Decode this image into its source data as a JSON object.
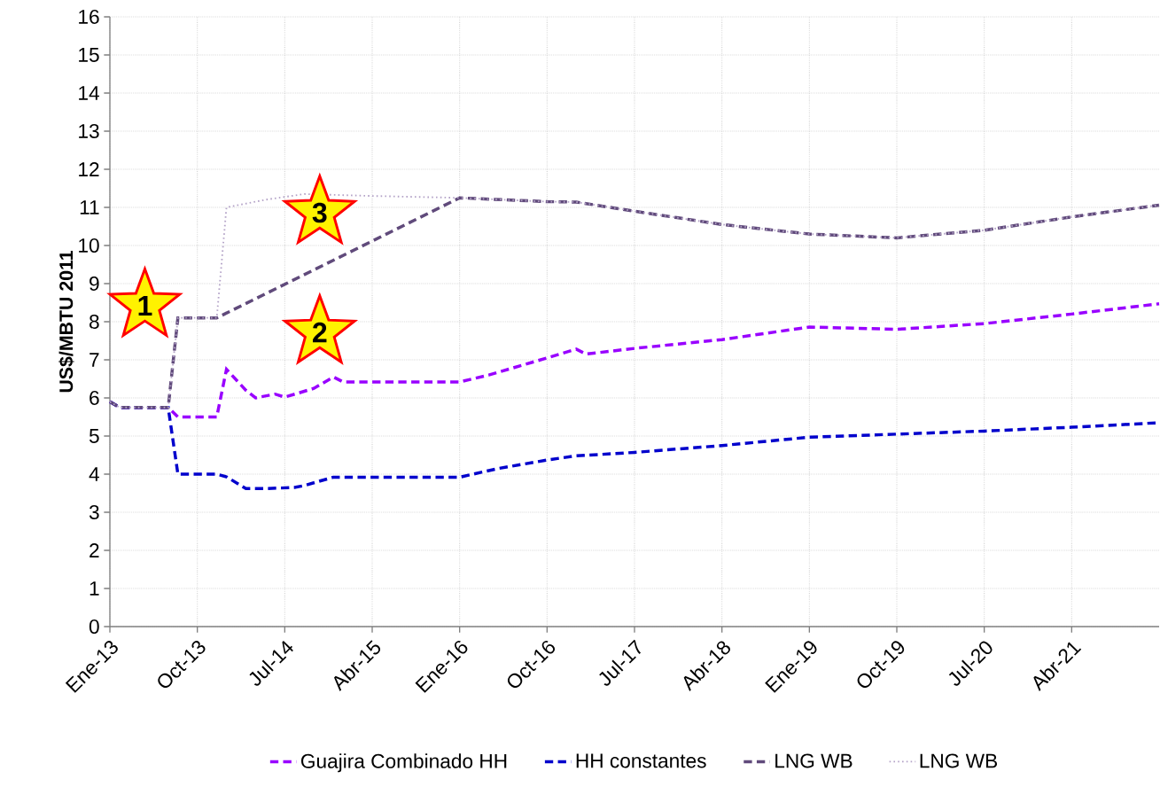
{
  "chart_data": {
    "type": "line",
    "ylabel": "US$/MBTU 2011",
    "xlim": [
      "2013-01",
      "2022-01"
    ],
    "ylim": [
      0,
      16
    ],
    "xticks": [
      {
        "value": "2013-01",
        "label": "Ene-13"
      },
      {
        "value": "2013-10",
        "label": "Oct-13"
      },
      {
        "value": "2014-07",
        "label": "Jul-14"
      },
      {
        "value": "2015-04",
        "label": "Abr-15"
      },
      {
        "value": "2016-01",
        "label": "Ene-16"
      },
      {
        "value": "2016-10",
        "label": "Oct-16"
      },
      {
        "value": "2017-07",
        "label": "Jul-17"
      },
      {
        "value": "2018-04",
        "label": "Abr-18"
      },
      {
        "value": "2019-01",
        "label": "Ene-19"
      },
      {
        "value": "2019-10",
        "label": "Oct-19"
      },
      {
        "value": "2020-07",
        "label": "Jul-20"
      },
      {
        "value": "2021-04",
        "label": "Abr-21"
      }
    ],
    "yticks": [
      0,
      1,
      2,
      3,
      4,
      5,
      6,
      7,
      8,
      9,
      10,
      11,
      12,
      13,
      14,
      15,
      16
    ],
    "grid": true,
    "legend": "bottom",
    "marker": "none",
    "annotations": [
      "1",
      "2",
      "3"
    ],
    "series": [
      {
        "name": "Guajira Combinado HH",
        "color": "#9900ff",
        "line_style": "dashed",
        "x": [
          "2013-01",
          "2013-02",
          "2013-07",
          "2013-08",
          "2013-12",
          "2014-01",
          "2014-03",
          "2014-04",
          "2014-06",
          "2014-07",
          "2014-10",
          "2014-12",
          "2015-01",
          "2016-01",
          "2016-04",
          "2016-10",
          "2017-01",
          "2017-02",
          "2017-07",
          "2018-04",
          "2019-01",
          "2019-10",
          "2020-07",
          "2021-04",
          "2022-01"
        ],
        "values": [
          5.9,
          5.75,
          5.75,
          5.5,
          5.5,
          6.75,
          6.2,
          6.0,
          6.1,
          6.02,
          6.25,
          6.55,
          6.42,
          6.42,
          6.6,
          7.05,
          7.28,
          7.15,
          7.3,
          7.53,
          7.86,
          7.8,
          7.95,
          8.2,
          8.47
        ]
      },
      {
        "name": "HH constantes",
        "color": "#0000cc",
        "line_style": "dashed",
        "x": [
          "2013-01",
          "2013-02",
          "2013-07",
          "2013-08",
          "2013-12",
          "2014-01",
          "2014-03",
          "2014-05",
          "2014-08",
          "2014-09",
          "2014-12",
          "2015-01",
          "2016-01",
          "2016-05",
          "2016-10",
          "2017-01",
          "2017-07",
          "2018-04",
          "2019-01",
          "2019-10",
          "2020-07",
          "2021-04",
          "2022-01"
        ],
        "values": [
          5.9,
          5.75,
          5.75,
          4.0,
          4.0,
          3.93,
          3.62,
          3.62,
          3.65,
          3.7,
          3.92,
          3.92,
          3.92,
          4.15,
          4.37,
          4.48,
          4.57,
          4.75,
          4.97,
          5.05,
          5.13,
          5.23,
          5.35
        ]
      },
      {
        "name": "LNG WB",
        "color": "#604a7b",
        "line_style": "dashed",
        "x": [
          "2013-01",
          "2013-02",
          "2013-07",
          "2013-08",
          "2013-12",
          "2016-01",
          "2016-10",
          "2017-01",
          "2017-07",
          "2018-04",
          "2019-01",
          "2019-10",
          "2020-07",
          "2021-04",
          "2022-01"
        ],
        "values": [
          5.9,
          5.75,
          5.75,
          8.1,
          8.1,
          11.25,
          11.15,
          11.14,
          10.9,
          10.55,
          10.3,
          10.2,
          10.4,
          10.75,
          11.06
        ]
      },
      {
        "name": "LNG WB",
        "color": "#b3a2c7",
        "line_style": "dotted",
        "x": [
          "2013-01",
          "2013-02",
          "2013-07",
          "2013-08",
          "2013-12",
          "2014-01",
          "2014-05",
          "2014-09",
          "2015-04",
          "2016-01",
          "2016-10",
          "2017-01",
          "2017-07",
          "2018-04",
          "2019-01",
          "2019-10",
          "2020-07",
          "2021-04",
          "2022-01"
        ],
        "values": [
          5.9,
          5.75,
          5.75,
          8.1,
          8.1,
          11.0,
          11.2,
          11.35,
          11.3,
          11.25,
          11.15,
          11.14,
          10.9,
          10.55,
          10.3,
          10.2,
          10.4,
          10.75,
          11.06
        ]
      }
    ]
  }
}
